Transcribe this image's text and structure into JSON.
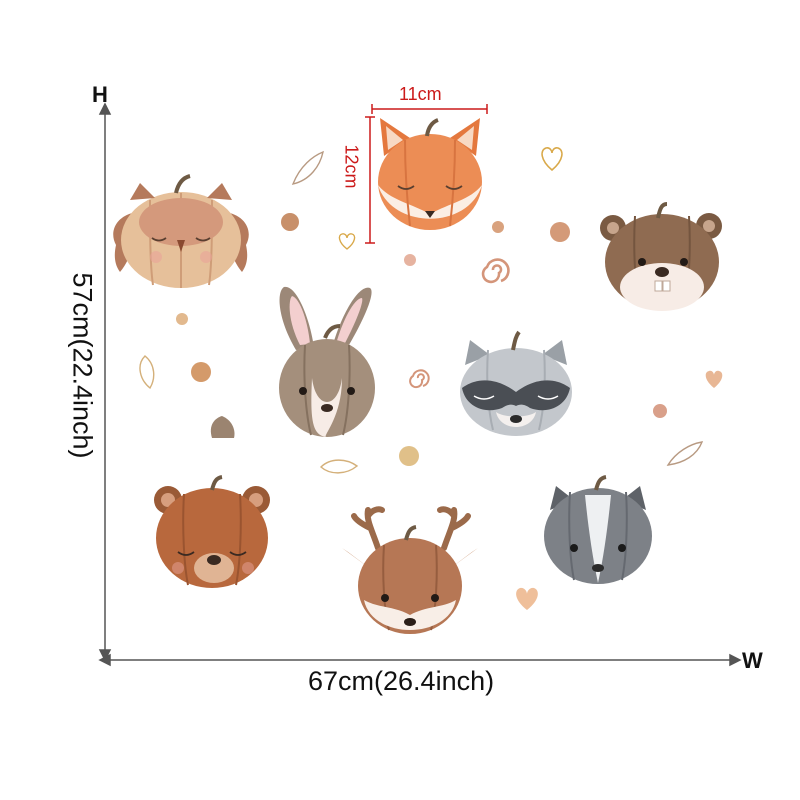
{
  "dimensions": {
    "height_marker": "H",
    "width_marker": "W",
    "overall_height": "57cm(22.4inch)",
    "overall_width": "67cm(26.4inch)",
    "sample_width": "11cm",
    "sample_height": "12cm"
  },
  "colors": {
    "dimension_lines": "#555555",
    "sample_measure": "#cc1a1a"
  },
  "stickers": [
    {
      "animal": "owl",
      "color": "#d9a882"
    },
    {
      "animal": "fox",
      "color": "#e8874f"
    },
    {
      "animal": "beaver",
      "color": "#8b6a50"
    },
    {
      "animal": "rabbit",
      "color": "#9c8878"
    },
    {
      "animal": "raccoon",
      "color": "#b8bcc2"
    },
    {
      "animal": "bear",
      "color": "#b86a3f"
    },
    {
      "animal": "deer",
      "color": "#b0724f"
    },
    {
      "animal": "skunk",
      "color": "#7d8187"
    }
  ],
  "decorations": [
    "heart",
    "leaf",
    "dot",
    "swirl"
  ]
}
